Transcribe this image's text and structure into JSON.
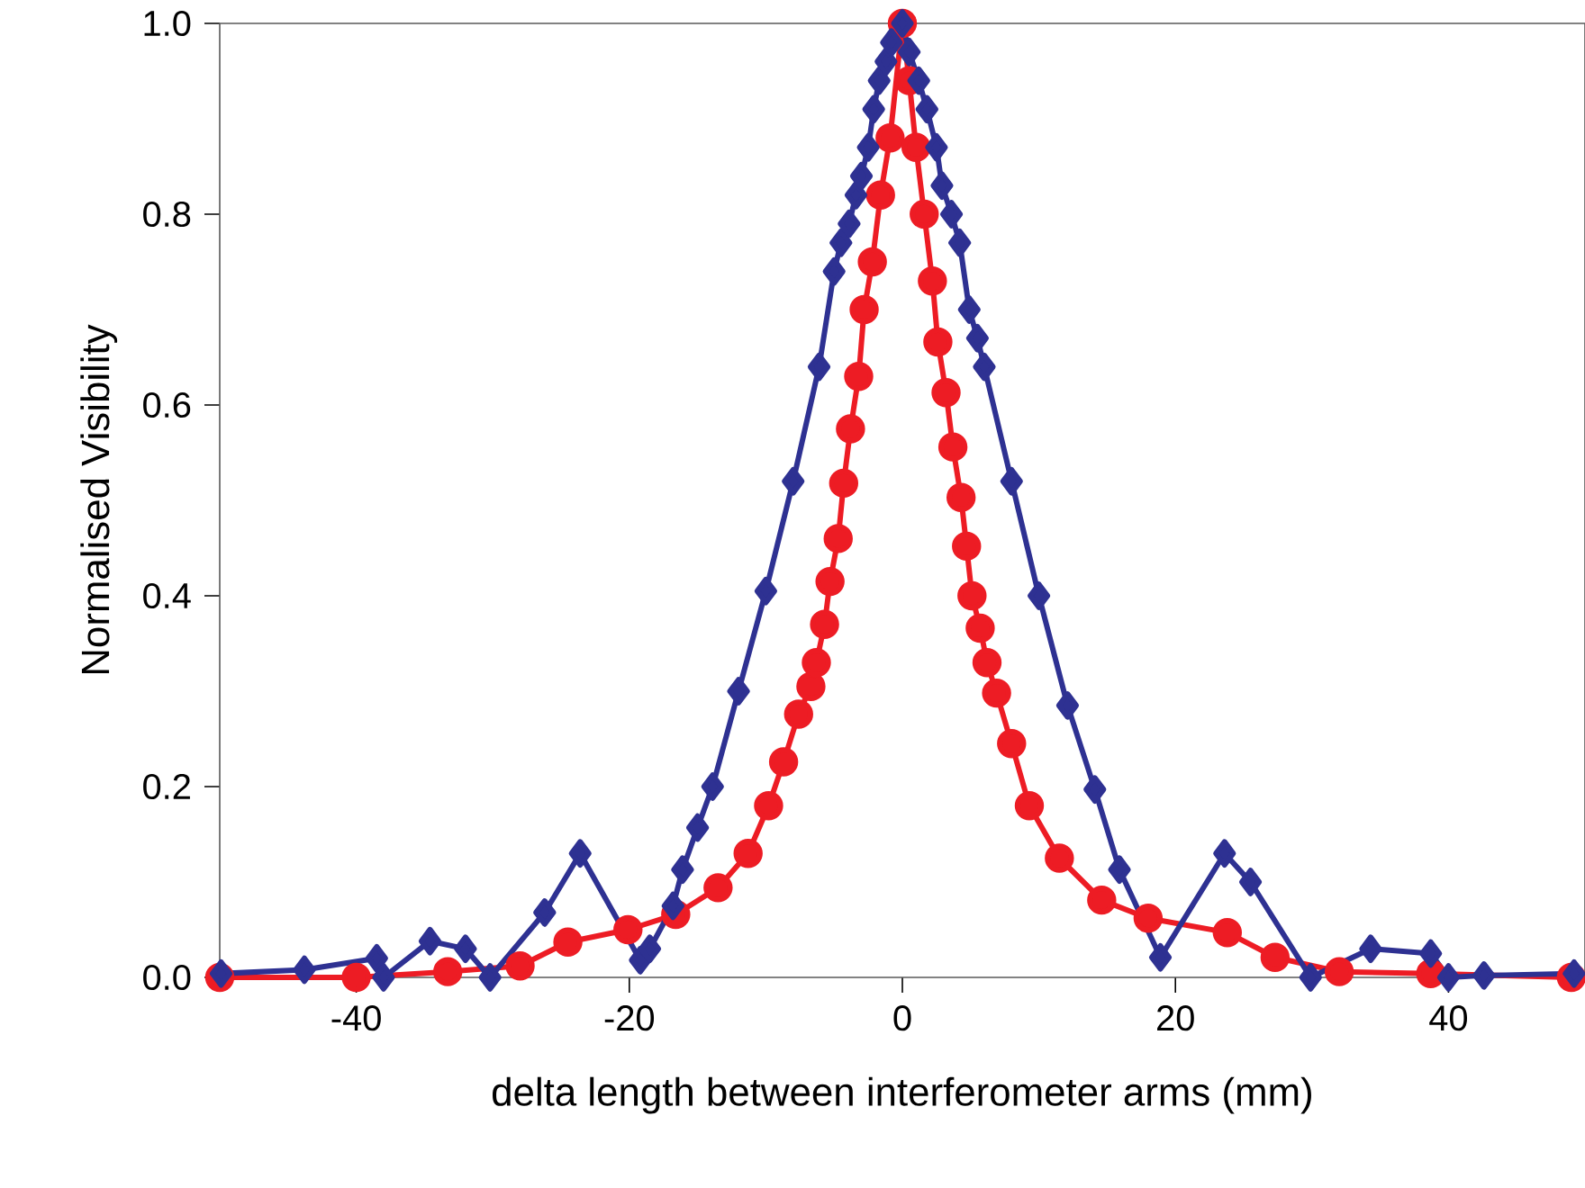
{
  "chart_data": {
    "type": "line",
    "xlabel": "delta length between interferometer arms (mm)",
    "ylabel": "Normalised Visibility",
    "xlim": [
      -50,
      50
    ],
    "xticks": [
      -40,
      -20,
      0,
      20,
      40
    ],
    "ylim": [
      0,
      1.0
    ],
    "yticks": [
      {
        "value": 0,
        "label": "0.0"
      },
      {
        "value": 0.2,
        "label": "0.2"
      },
      {
        "value": 0.4,
        "label": "0.4"
      },
      {
        "value": 0.6,
        "label": "0.6"
      },
      {
        "value": 0.8,
        "label": "0.8"
      },
      {
        "value": 1.0,
        "label": "1.0"
      }
    ],
    "grid": false,
    "line_style": "solid",
    "series": [
      {
        "color": "#ed1c24",
        "marker": "circle",
        "x": [
          -50,
          -40,
          -33.3,
          -28,
          -24.5,
          -20.1,
          -16.6,
          -13.5,
          -11.3,
          -9.8,
          -8.7,
          -7.6,
          -6.7,
          -6.3,
          -5.7,
          -5.3,
          -4.7,
          -4.3,
          -3.8,
          -3.2,
          -2.8,
          -2.2,
          -1.6,
          -0.9,
          0,
          0.5,
          1.0,
          1.6,
          2.2,
          2.6,
          3.2,
          3.7,
          4.3,
          4.7,
          5.1,
          5.7,
          6.2,
          6.9,
          8,
          9.3,
          11.5,
          14.6,
          18,
          23.8,
          27.3,
          32,
          38.7,
          49
        ],
        "values": [
          0,
          0,
          0.006,
          0.012,
          0.037,
          0.05,
          0.066,
          0.094,
          0.13,
          0.18,
          0.226,
          0.276,
          0.305,
          0.33,
          0.37,
          0.415,
          0.46,
          0.518,
          0.575,
          0.63,
          0.7,
          0.75,
          0.82,
          0.88,
          1.0,
          0.94,
          0.87,
          0.8,
          0.73,
          0.666,
          0.613,
          0.556,
          0.503,
          0.452,
          0.4,
          0.366,
          0.33,
          0.298,
          0.245,
          0.18,
          0.125,
          0.081,
          0.062,
          0.047,
          0.021,
          0.006,
          0.004,
          0
        ]
      },
      {
        "color": "#2e3192",
        "marker": "diamond",
        "x": [
          -49.9,
          -43.8,
          -38.5,
          -38,
          -34.6,
          -32,
          -30.2,
          -26.2,
          -23.6,
          -19.2,
          -18.5,
          -16.8,
          -16.1,
          -15,
          -13.9,
          -12,
          -10,
          -8,
          -6.1,
          -5.0,
          -4.5,
          -3.9,
          -3.4,
          -3.0,
          -2.5,
          -2.1,
          -1.7,
          -1.2,
          -0.8,
          0,
          0.5,
          1.2,
          1.8,
          2.5,
          2.9,
          3.6,
          4.2,
          4.9,
          5.5,
          6.0,
          8.0,
          10,
          12.1,
          14.1,
          15.9,
          18.9,
          23.6,
          25.5,
          29.9,
          34.3,
          38.7,
          40,
          42.6,
          49.2
        ],
        "values": [
          0.004,
          0.008,
          0.02,
          0,
          0.038,
          0.03,
          0,
          0.068,
          0.13,
          0.018,
          0.03,
          0.075,
          0.113,
          0.157,
          0.2,
          0.3,
          0.405,
          0.52,
          0.64,
          0.74,
          0.77,
          0.79,
          0.82,
          0.84,
          0.87,
          0.91,
          0.94,
          0.96,
          0.98,
          1.0,
          0.97,
          0.94,
          0.91,
          0.87,
          0.83,
          0.8,
          0.77,
          0.7,
          0.67,
          0.64,
          0.52,
          0.4,
          0.285,
          0.197,
          0.113,
          0.021,
          0.13,
          0.1,
          0,
          0.03,
          0.025,
          0,
          0.002,
          0.004
        ]
      }
    ]
  }
}
